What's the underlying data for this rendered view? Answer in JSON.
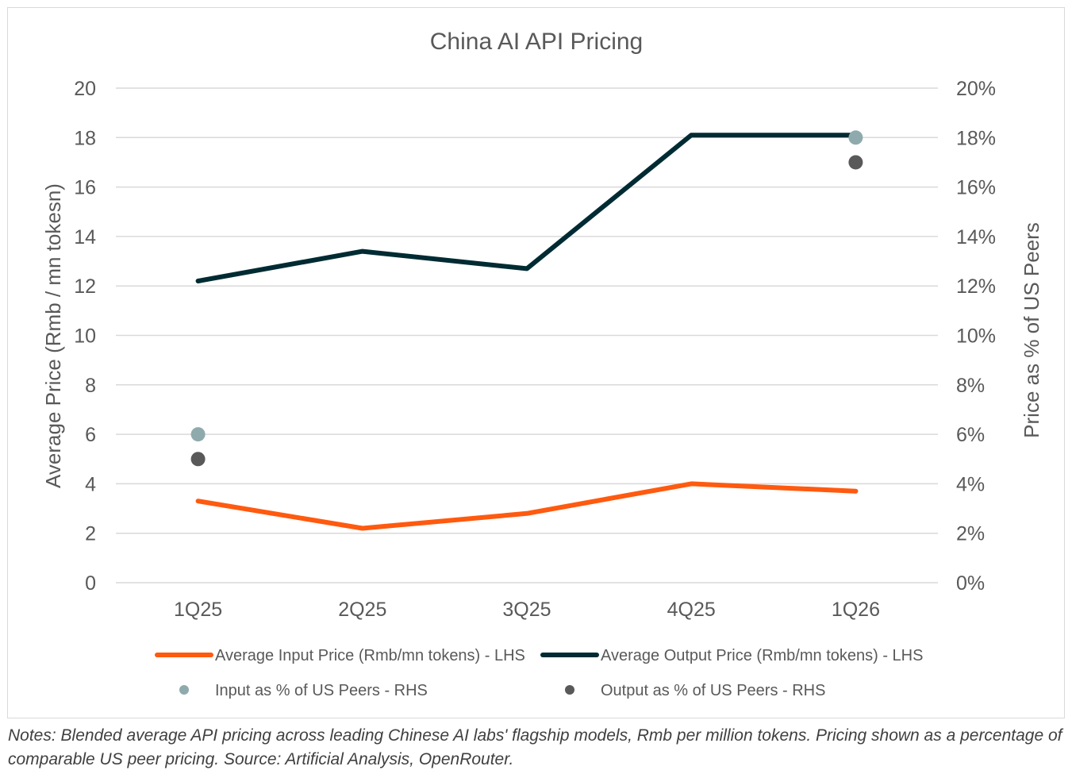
{
  "colors": {
    "input_line": "#FF5A0F",
    "output_line": "#002B33",
    "input_pct_dot": "#8FAAAC",
    "output_pct_dot": "#595959",
    "grid": "#d9d9d9",
    "axis_text": "#595959"
  },
  "notes": {
    "label": "Notes:",
    "text": "Blended average API pricing across leading Chinese AI labs' flagship models, Rmb per million tokens. Pricing shown as a percentage of comparable US peer pricing. Source: Artificial Analysis, OpenRouter."
  },
  "chart_data": {
    "type": "line",
    "title": "China AI API Pricing",
    "categories": [
      "1Q25",
      "2Q25",
      "3Q25",
      "4Q25",
      "1Q26"
    ],
    "y_left": {
      "label": "Average Price (Rmb / mn tokesn)",
      "min": 0,
      "max": 20,
      "ticks": [
        "0",
        "2",
        "4",
        "6",
        "8",
        "10",
        "12",
        "14",
        "16",
        "18",
        "20"
      ]
    },
    "y_right": {
      "label": "Price as % of US Peers",
      "min": 0,
      "max": 0.2,
      "ticks": [
        "0%",
        "2%",
        "4%",
        "6%",
        "8%",
        "10%",
        "12%",
        "14%",
        "16%",
        "18%",
        "20%"
      ]
    },
    "grid": true,
    "legend_position": "bottom",
    "series": [
      {
        "name": "Average Input Price (Rmb/mn tokens) - LHS",
        "type": "line",
        "axis": "left",
        "color": "#FF5A0F",
        "values": [
          3.3,
          2.2,
          2.8,
          4.0,
          3.7
        ]
      },
      {
        "name": "Average Output Price (Rmb/mn tokens) - LHS",
        "type": "line",
        "axis": "left",
        "color": "#002B33",
        "values": [
          12.2,
          13.4,
          12.7,
          18.1,
          18.1
        ]
      },
      {
        "name": "Input as % of US Peers - RHS",
        "type": "scatter",
        "axis": "right",
        "color": "#8FAAAC",
        "values": [
          0.06,
          null,
          null,
          null,
          0.18
        ]
      },
      {
        "name": "Output as % of US Peers - RHS",
        "type": "scatter",
        "axis": "right",
        "color": "#595959",
        "values": [
          0.05,
          null,
          null,
          null,
          0.17
        ]
      }
    ]
  }
}
